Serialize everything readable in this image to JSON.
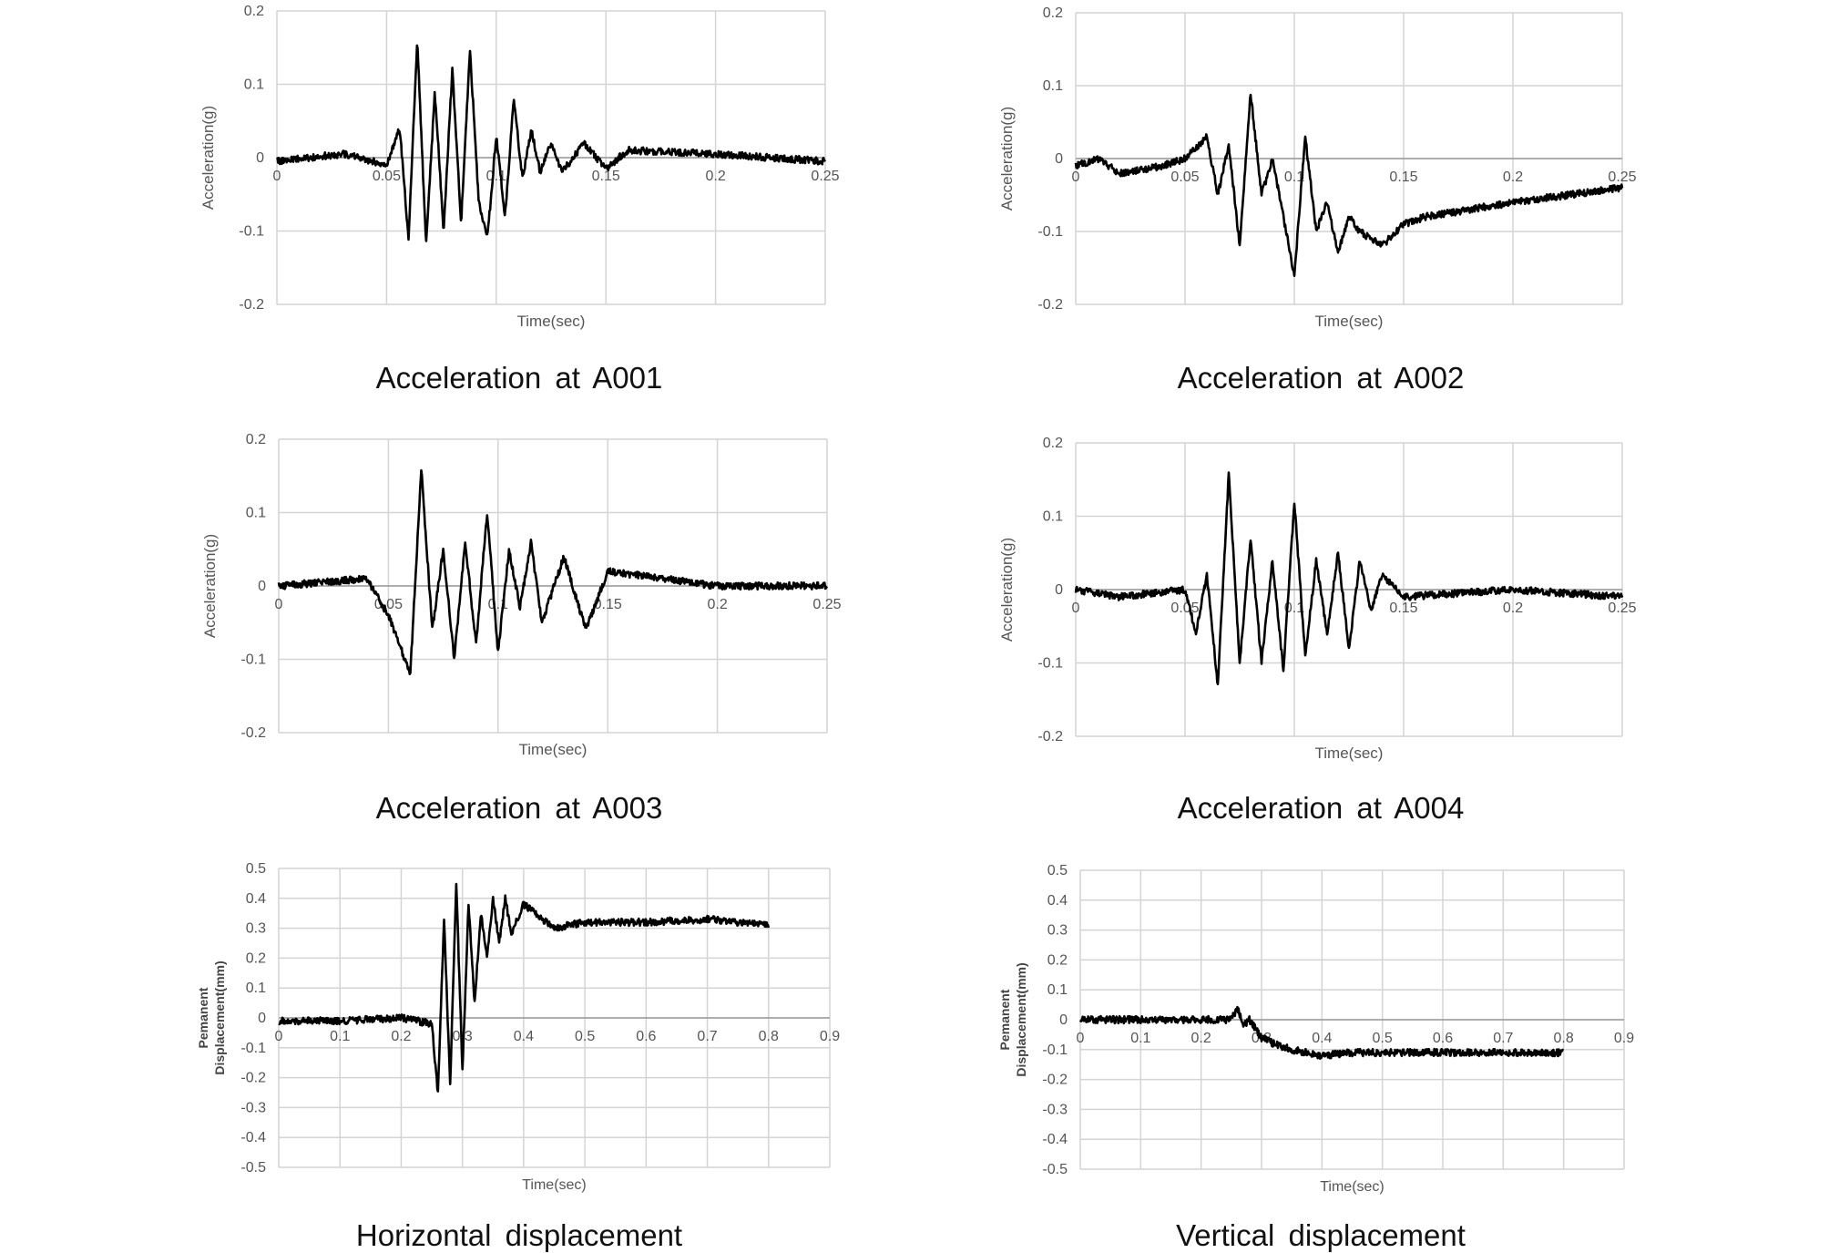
{
  "chart_data": [
    {
      "type": "line",
      "caption": "Acceleration at A001",
      "xlabel": "Time(sec)",
      "ylabel": "Acceleration(g)",
      "xlim": [
        0,
        0.25
      ],
      "ylim": [
        -0.2,
        0.2
      ],
      "x_ticks": [
        "0",
        "0.05",
        "0.1",
        "0.15",
        "0.2",
        "0.25"
      ],
      "y_ticks": [
        "0.2",
        "0.1",
        "0",
        "-0.1",
        "-0.2"
      ],
      "series": [
        {
          "x": [
            0,
            0.03,
            0.05,
            0.056,
            0.06,
            0.064,
            0.068,
            0.072,
            0.076,
            0.08,
            0.084,
            0.088,
            0.092,
            0.096,
            0.1,
            0.104,
            0.108,
            0.112,
            0.116,
            0.12,
            0.125,
            0.13,
            0.14,
            0.15,
            0.16,
            0.2,
            0.25
          ],
          "y": [
            -0.005,
            0.005,
            -0.01,
            0.04,
            -0.11,
            0.16,
            -0.12,
            0.09,
            -0.1,
            0.12,
            -0.09,
            0.15,
            -0.06,
            -0.11,
            0.03,
            -0.08,
            0.08,
            -0.03,
            0.04,
            -0.02,
            0.02,
            -0.02,
            0.02,
            -0.015,
            0.01,
            0.005,
            -0.005
          ]
        }
      ]
    },
    {
      "type": "line",
      "caption": "Acceleration at A002",
      "xlabel": "Time(sec)",
      "ylabel": "Acceleration(g)",
      "xlim": [
        0,
        0.25
      ],
      "ylim": [
        -0.2,
        0.2
      ],
      "x_ticks": [
        "0",
        "0.05",
        "0.1",
        "0.15",
        "0.2",
        "0.25"
      ],
      "y_ticks": [
        "0.2",
        "0.1",
        "0",
        "-0.1",
        "-0.2"
      ],
      "series": [
        {
          "x": [
            0,
            0.01,
            0.02,
            0.04,
            0.05,
            0.06,
            0.065,
            0.07,
            0.075,
            0.08,
            0.085,
            0.09,
            0.095,
            0.1,
            0.105,
            0.11,
            0.115,
            0.12,
            0.125,
            0.13,
            0.14,
            0.15,
            0.16,
            0.2,
            0.25
          ],
          "y": [
            -0.01,
            0.0,
            -0.02,
            -0.01,
            0.0,
            0.03,
            -0.05,
            0.02,
            -0.12,
            0.09,
            -0.05,
            0.0,
            -0.08,
            -0.16,
            0.03,
            -0.1,
            -0.06,
            -0.13,
            -0.08,
            -0.1,
            -0.12,
            -0.09,
            -0.08,
            -0.06,
            -0.04
          ]
        }
      ]
    },
    {
      "type": "line",
      "caption": "Acceleration at A003",
      "xlabel": "Time(sec)",
      "ylabel": "Acceleration(g)",
      "xlim": [
        0,
        0.25
      ],
      "ylim": [
        -0.2,
        0.2
      ],
      "x_ticks": [
        "0",
        "0.05",
        "0.1",
        "0.15",
        "0.2",
        "0.25"
      ],
      "y_ticks": [
        "0.2",
        "0.1",
        "0",
        "-0.1",
        "-0.2"
      ],
      "series": [
        {
          "x": [
            0,
            0.04,
            0.05,
            0.06,
            0.065,
            0.07,
            0.075,
            0.08,
            0.085,
            0.09,
            0.095,
            0.1,
            0.105,
            0.11,
            0.115,
            0.12,
            0.13,
            0.14,
            0.15,
            0.2,
            0.25
          ],
          "y": [
            0.0,
            0.01,
            -0.04,
            -0.12,
            0.16,
            -0.06,
            0.05,
            -0.1,
            0.06,
            -0.08,
            0.1,
            -0.09,
            0.05,
            -0.03,
            0.06,
            -0.05,
            0.04,
            -0.06,
            0.02,
            0.0,
            0.0
          ]
        }
      ]
    },
    {
      "type": "line",
      "caption": "Acceleration at A004",
      "xlabel": "Time(sec)",
      "ylabel": "Acceleration(g)",
      "xlim": [
        0,
        0.25
      ],
      "ylim": [
        -0.2,
        0.2
      ],
      "x_ticks": [
        "0",
        "0.05",
        "0.1",
        "0.15",
        "0.2",
        "0.25"
      ],
      "y_ticks": [
        "0.2",
        "0.1",
        "0",
        "-0.1",
        "-0.2"
      ],
      "series": [
        {
          "x": [
            0,
            0.02,
            0.05,
            0.055,
            0.06,
            0.065,
            0.07,
            0.075,
            0.08,
            0.085,
            0.09,
            0.095,
            0.1,
            0.105,
            0.11,
            0.115,
            0.12,
            0.125,
            0.13,
            0.135,
            0.14,
            0.15,
            0.2,
            0.25
          ],
          "y": [
            0.0,
            -0.01,
            0.0,
            -0.06,
            0.02,
            -0.13,
            0.16,
            -0.1,
            0.07,
            -0.1,
            0.04,
            -0.11,
            0.12,
            -0.09,
            0.04,
            -0.06,
            0.05,
            -0.08,
            0.04,
            -0.03,
            0.02,
            -0.01,
            0.0,
            -0.01
          ]
        }
      ]
    },
    {
      "type": "line",
      "caption": "Horizontal displacement",
      "xlabel": "Time(sec)",
      "ylabel": "Pemanent Displacement(mm)",
      "xlim": [
        0,
        0.9
      ],
      "ylim": [
        -0.5,
        0.5
      ],
      "x_ticks": [
        "0",
        "0.1",
        "0.2",
        "0.3",
        "0.4",
        "0.5",
        "0.6",
        "0.7",
        "0.8",
        "0.9"
      ],
      "y_ticks": [
        "0.5",
        "0.4",
        "0.3",
        "0.2",
        "0.1",
        "0",
        "-0.1",
        "-0.2",
        "-0.3",
        "-0.4",
        "-0.5"
      ],
      "series": [
        {
          "x": [
            0,
            0.1,
            0.2,
            0.25,
            0.26,
            0.27,
            0.28,
            0.29,
            0.3,
            0.31,
            0.32,
            0.33,
            0.34,
            0.35,
            0.36,
            0.37,
            0.38,
            0.4,
            0.45,
            0.5,
            0.6,
            0.7,
            0.8
          ],
          "y": [
            -0.01,
            -0.01,
            0.0,
            -0.02,
            -0.25,
            0.33,
            -0.22,
            0.45,
            -0.18,
            0.38,
            0.05,
            0.35,
            0.2,
            0.4,
            0.25,
            0.4,
            0.28,
            0.38,
            0.3,
            0.32,
            0.32,
            0.33,
            0.31
          ]
        }
      ]
    },
    {
      "type": "line",
      "caption": "Vertical displacement",
      "xlabel": "Time(sec)",
      "ylabel": "Pemanent Displacement(mm)",
      "xlim": [
        0,
        0.9
      ],
      "ylim": [
        -0.5,
        0.5
      ],
      "x_ticks": [
        "0",
        "0.1",
        "0.2",
        "0.3",
        "0.4",
        "0.5",
        "0.6",
        "0.7",
        "0.8",
        "0.9"
      ],
      "y_ticks": [
        "0.5",
        "0.4",
        "0.3",
        "0.2",
        "0.1",
        "0",
        "-0.1",
        "-0.2",
        "-0.3",
        "-0.4",
        "-0.5"
      ],
      "series": [
        {
          "x": [
            0,
            0.1,
            0.2,
            0.25,
            0.26,
            0.27,
            0.28,
            0.3,
            0.32,
            0.35,
            0.4,
            0.45,
            0.5,
            0.6,
            0.7,
            0.8
          ],
          "y": [
            0.0,
            0.0,
            0.0,
            0.0,
            0.04,
            -0.02,
            0.0,
            -0.06,
            -0.08,
            -0.1,
            -0.12,
            -0.11,
            -0.11,
            -0.11,
            -0.11,
            -0.11
          ]
        }
      ]
    }
  ]
}
